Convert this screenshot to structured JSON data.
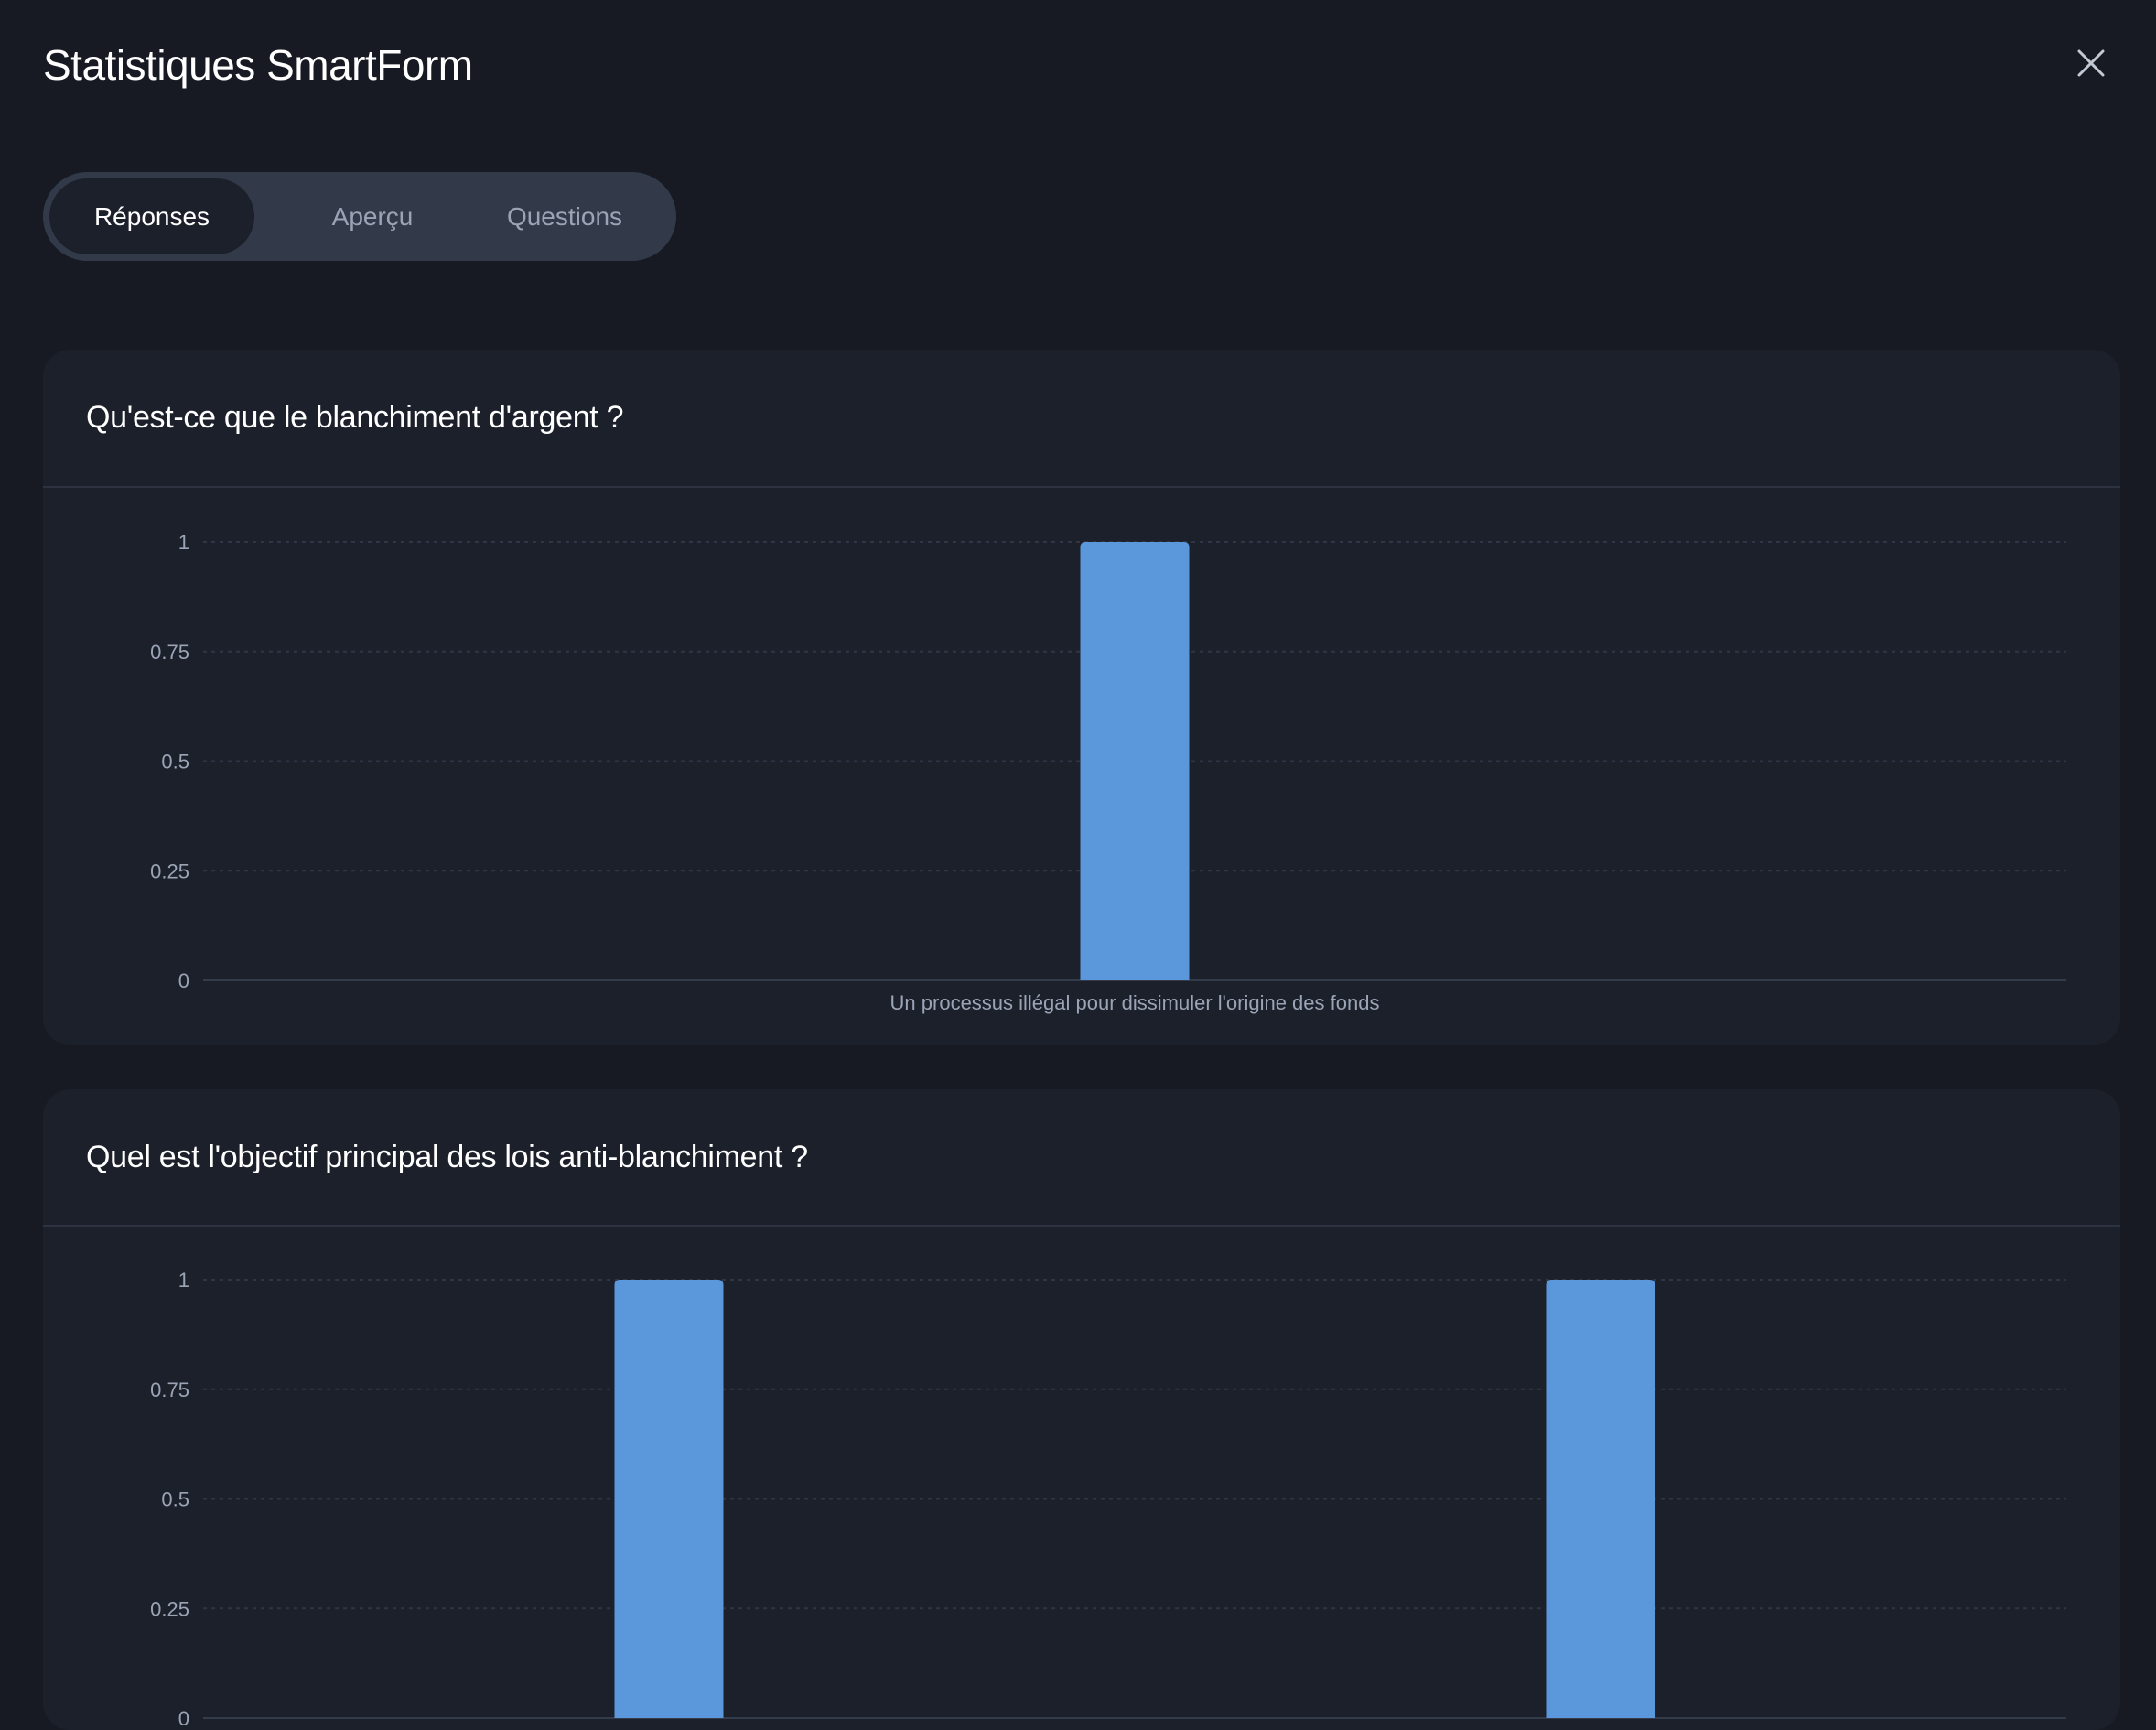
{
  "header": {
    "title": "Statistiques SmartForm",
    "close_icon": "close-icon"
  },
  "tabs": [
    {
      "label": "Réponses",
      "active": true
    },
    {
      "label": "Aperçu",
      "active": false
    },
    {
      "label": "Questions",
      "active": false
    }
  ],
  "colors": {
    "bar": "#5b97db",
    "card": "#1c202b",
    "background": "#171a22"
  },
  "chart_data": [
    {
      "type": "bar",
      "title": "Qu'est-ce que le blanchiment d'argent ?",
      "categories": [
        "Un processus illégal pour dissimuler l'origine des fonds"
      ],
      "values": [
        1
      ],
      "yticks": [
        "0",
        "0.25",
        "0.5",
        "0.75",
        "1"
      ],
      "ylim": [
        0,
        1
      ],
      "grid": true
    },
    {
      "type": "bar",
      "title": "Quel est l'objectif principal des lois anti-blanchiment ?",
      "categories": [
        "",
        ""
      ],
      "values": [
        1,
        1
      ],
      "yticks": [
        "0",
        "0.25",
        "0.5",
        "0.75",
        "1"
      ],
      "ylim": [
        0,
        1
      ],
      "grid": true
    }
  ]
}
